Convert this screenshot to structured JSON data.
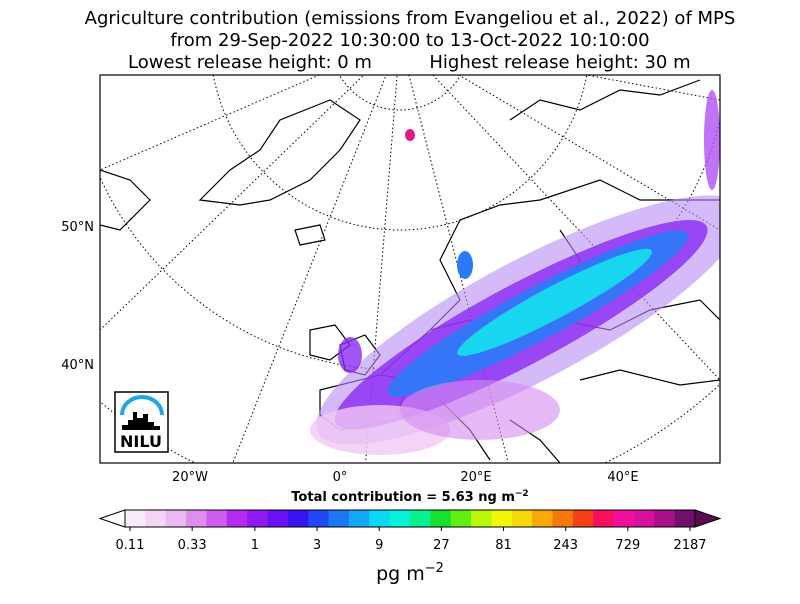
{
  "title": {
    "line1": "Agriculture contribution (emissions from Evangeliou et al., 2022) of MPS",
    "line2": "from 29-Sep-2022 10:30:00 to 13-Oct-2022 10:10:00",
    "line3a": "Lowest release height: 0 m",
    "line3b": "Highest release height: 30 m"
  },
  "map": {
    "lat_labels": [
      "50°N",
      "40°N"
    ],
    "lon_labels": [
      "20°W",
      "0°",
      "20°E",
      "40°E"
    ],
    "logo": "NILU"
  },
  "total": {
    "text": "Total contribution = 5.63 ng m",
    "exponent": "−2"
  },
  "colorbar": {
    "ticks": [
      0.11,
      0.33,
      1,
      3,
      9,
      27,
      81,
      243,
      729,
      2187
    ],
    "log_scale": true,
    "unit": "pg m",
    "unit_exponent": "−2"
  }
}
